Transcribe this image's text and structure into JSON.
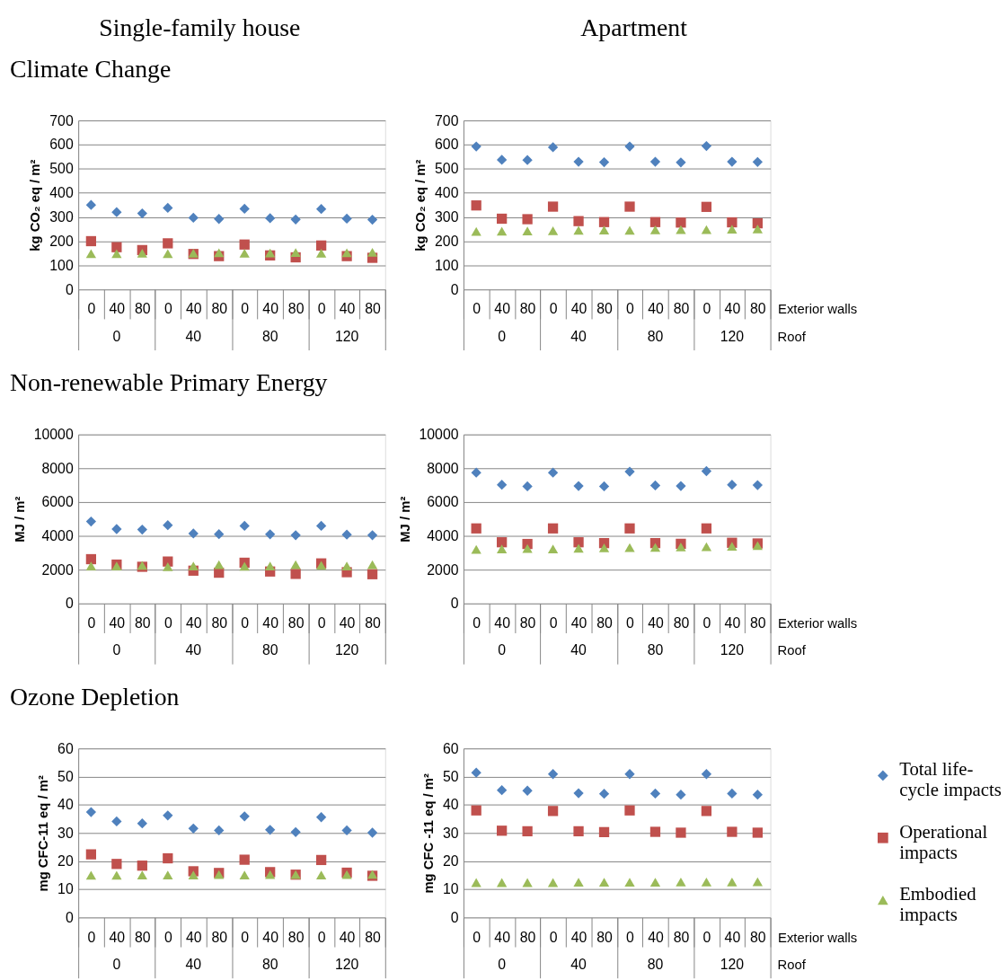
{
  "chart_data": [
    {
      "type": "scatter",
      "title": "Single-family house",
      "subtitle": "Climate Change",
      "ylabel": "kg CO₂ eq / m²",
      "categories": [
        "0",
        "40",
        "80",
        "0",
        "40",
        "80",
        "0",
        "40",
        "80",
        "0",
        "40",
        "80"
      ],
      "annotations": [
        "0",
        "40",
        "80",
        "120"
      ],
      "series": [
        {
          "color": "#4f81bd",
          "marker": "diamond",
          "values": [
            350,
            320,
            315,
            338,
            297,
            292,
            334,
            295,
            290,
            333,
            293,
            289
          ]
        },
        {
          "color": "#c0504d",
          "marker": "square",
          "values": [
            200,
            175,
            163,
            191,
            147,
            138,
            186,
            141,
            133,
            182,
            138,
            131
          ]
        },
        {
          "color": "#9bbb59",
          "marker": "triangle",
          "values": [
            148,
            148,
            150,
            148,
            150,
            152,
            150,
            151,
            153,
            150,
            152,
            154
          ]
        }
      ],
      "ylim": [
        0,
        700
      ],
      "yticks": [
        0,
        100,
        200,
        300,
        400,
        500,
        600,
        700
      ],
      "grid": "y"
    },
    {
      "type": "scatter",
      "title": "Apartment",
      "ylabel": "kg CO₂ eq / m²",
      "xlabel": "Exterior walls",
      "categories": [
        "0",
        "40",
        "80",
        "0",
        "40",
        "80",
        "0",
        "40",
        "80",
        "0",
        "40",
        "80"
      ],
      "annotations": [
        "0",
        "40",
        "80",
        "120",
        "Roof"
      ],
      "series": [
        {
          "color": "#4f81bd",
          "marker": "diamond",
          "values": [
            592,
            537,
            536,
            589,
            529,
            527,
            592,
            529,
            526,
            594,
            529,
            528
          ]
        },
        {
          "color": "#c0504d",
          "marker": "square",
          "values": [
            348,
            293,
            291,
            343,
            283,
            279,
            343,
            279,
            277,
            342,
            278,
            274
          ]
        },
        {
          "color": "#9bbb59",
          "marker": "triangle",
          "values": [
            240,
            241,
            242,
            243,
            245,
            246,
            245,
            247,
            248,
            248,
            250,
            251
          ]
        }
      ],
      "ylim": [
        0,
        700
      ],
      "yticks": [
        0,
        100,
        200,
        300,
        400,
        500,
        600,
        700
      ],
      "grid": "y"
    },
    {
      "type": "scatter",
      "title": "Non-renewable Primary Energy",
      "ylabel": "MJ / m²",
      "categories": [
        "0",
        "40",
        "80",
        "0",
        "40",
        "80",
        "0",
        "40",
        "80",
        "0",
        "40",
        "80"
      ],
      "annotations": [
        "0",
        "40",
        "80",
        "120"
      ],
      "series": [
        {
          "color": "#4f81bd",
          "marker": "diamond",
          "values": [
            4850,
            4400,
            4370,
            4630,
            4140,
            4100,
            4590,
            4090,
            4040,
            4590,
            4070,
            4040
          ]
        },
        {
          "color": "#c0504d",
          "marker": "square",
          "values": [
            2620,
            2300,
            2170,
            2480,
            1940,
            1820,
            2410,
            1890,
            1750,
            2370,
            1850,
            1730
          ]
        },
        {
          "color": "#9bbb59",
          "marker": "triangle",
          "values": [
            2220,
            2220,
            2250,
            2170,
            2220,
            2290,
            2200,
            2220,
            2290,
            2250,
            2220,
            2290
          ]
        }
      ],
      "ylim": [
        0,
        10000
      ],
      "yticks": [
        0,
        2000,
        4000,
        6000,
        8000,
        10000
      ],
      "grid": "y"
    },
    {
      "type": "scatter",
      "ylabel": "MJ / m²",
      "xlabel": "Exterior walls",
      "categories": [
        "0",
        "40",
        "80",
        "0",
        "40",
        "80",
        "0",
        "40",
        "80",
        "0",
        "40",
        "80"
      ],
      "annotations": [
        "0",
        "40",
        "80",
        "120",
        "Roof"
      ],
      "series": [
        {
          "color": "#4f81bd",
          "marker": "diamond",
          "values": [
            7740,
            7020,
            6930,
            7740,
            6950,
            6930,
            7800,
            6980,
            6950,
            7830,
            7020,
            7000
          ]
        },
        {
          "color": "#c0504d",
          "marker": "square",
          "values": [
            4440,
            3620,
            3520,
            4440,
            3620,
            3570,
            4440,
            3570,
            3530,
            4440,
            3590,
            3550
          ]
        },
        {
          "color": "#9bbb59",
          "marker": "triangle",
          "values": [
            3200,
            3230,
            3250,
            3230,
            3270,
            3290,
            3300,
            3320,
            3340,
            3360,
            3390,
            3430
          ]
        }
      ],
      "ylim": [
        0,
        10000
      ],
      "yticks": [
        0,
        2000,
        4000,
        6000,
        8000,
        10000
      ],
      "grid": "y"
    },
    {
      "type": "scatter",
      "title": "Ozone Depletion",
      "ylabel": "mg CFC-11 eq / m²",
      "categories": [
        "0",
        "40",
        "80",
        "0",
        "40",
        "80",
        "0",
        "40",
        "80",
        "0",
        "40",
        "80"
      ],
      "annotations": [
        "0",
        "40",
        "80",
        "120"
      ],
      "series": [
        {
          "color": "#4f81bd",
          "marker": "diamond",
          "values": [
            37.4,
            34.1,
            33.4,
            36.2,
            31.6,
            30.9,
            35.9,
            31.1,
            30.3,
            35.6,
            30.9,
            30.1
          ]
        },
        {
          "color": "#c0504d",
          "marker": "square",
          "values": [
            22.4,
            19.0,
            18.4,
            21.0,
            16.4,
            15.8,
            20.5,
            16.1,
            15.2,
            20.4,
            15.9,
            14.8
          ]
        },
        {
          "color": "#9bbb59",
          "marker": "triangle",
          "values": [
            15.0,
            15.0,
            15.1,
            15.1,
            15.1,
            15.2,
            15.1,
            15.2,
            15.2,
            15.1,
            15.2,
            15.3
          ]
        }
      ],
      "ylim": [
        0,
        60
      ],
      "yticks": [
        0,
        10,
        20,
        30,
        40,
        50,
        60
      ],
      "grid": "y"
    },
    {
      "type": "scatter",
      "ylabel": "mg CFC -11 eq / m²",
      "xlabel": "Exterior walls",
      "categories": [
        "0",
        "40",
        "80",
        "0",
        "40",
        "80",
        "0",
        "40",
        "80",
        "0",
        "40",
        "80"
      ],
      "annotations": [
        "0",
        "40",
        "80",
        "120",
        "Roof"
      ],
      "series": [
        {
          "name": "Total life-cycle impacts",
          "color": "#4f81bd",
          "marker": "diamond",
          "values": [
            51.4,
            45.2,
            45.0,
            50.9,
            44.1,
            43.9,
            50.9,
            44.0,
            43.6,
            50.9,
            44.0,
            43.6
          ]
        },
        {
          "name": "Operational impacts",
          "color": "#c0504d",
          "marker": "square",
          "values": [
            38.0,
            30.8,
            30.6,
            37.8,
            30.6,
            30.3,
            38.0,
            30.4,
            30.1,
            37.8,
            30.4,
            30.1
          ]
        },
        {
          "name": "Embodied impacts",
          "color": "#9bbb59",
          "marker": "triangle",
          "values": [
            12.4,
            12.4,
            12.4,
            12.4,
            12.5,
            12.5,
            12.5,
            12.5,
            12.6,
            12.6,
            12.6,
            12.7
          ]
        }
      ],
      "ylim": [
        0,
        60
      ],
      "yticks": [
        0,
        10,
        20,
        30,
        40,
        50,
        60
      ],
      "grid": "y",
      "legend": "right"
    }
  ]
}
